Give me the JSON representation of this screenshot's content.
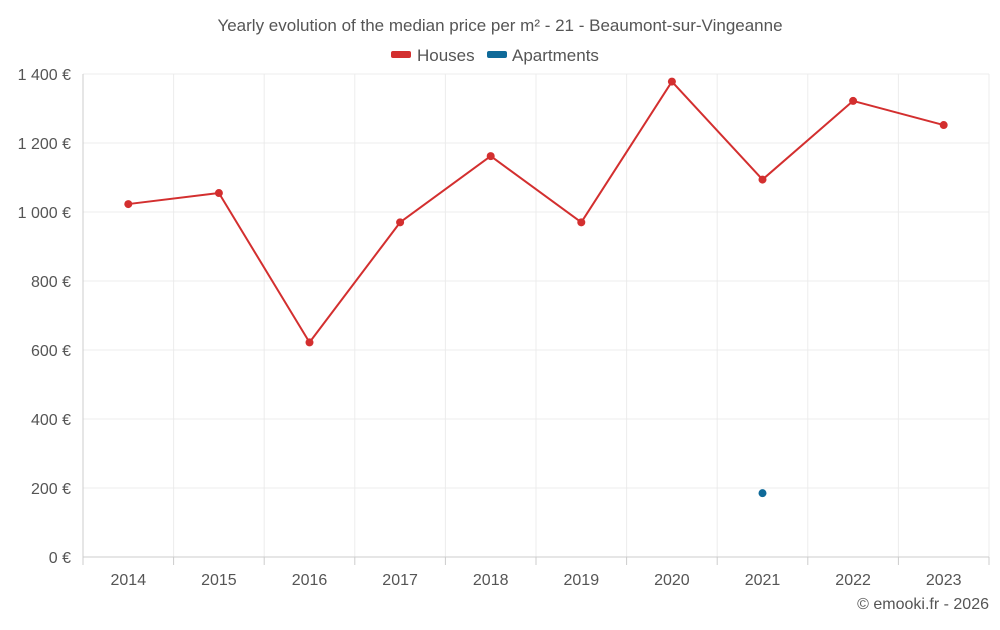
{
  "chart_data": {
    "type": "line",
    "title": "Yearly evolution of the median price per m² - 21 - Beaumont-sur-Vingeanne",
    "categories": [
      "2014",
      "2015",
      "2016",
      "2017",
      "2018",
      "2019",
      "2020",
      "2021",
      "2022",
      "2023"
    ],
    "series": [
      {
        "name": "Houses",
        "color": "#d32f2f",
        "values": [
          1023,
          1055,
          622,
          970,
          1162,
          970,
          1378,
          1094,
          1322,
          1252
        ]
      },
      {
        "name": "Apartments",
        "color": "#0f6a99",
        "values": [
          null,
          null,
          null,
          null,
          null,
          null,
          null,
          185,
          null,
          null
        ]
      }
    ],
    "ylim": [
      0,
      1400
    ],
    "yticks": [
      0,
      200,
      400,
      600,
      800,
      1000,
      1200,
      1400
    ],
    "ytick_labels": [
      "0 €",
      "200 €",
      "400 €",
      "600 €",
      "800 €",
      "1 000 €",
      "1 200 €",
      "1 400 €"
    ],
    "xlabel": "",
    "ylabel": "",
    "grid": true,
    "legend_position": "top-center"
  },
  "credit": "© emooki.fr - 2026"
}
